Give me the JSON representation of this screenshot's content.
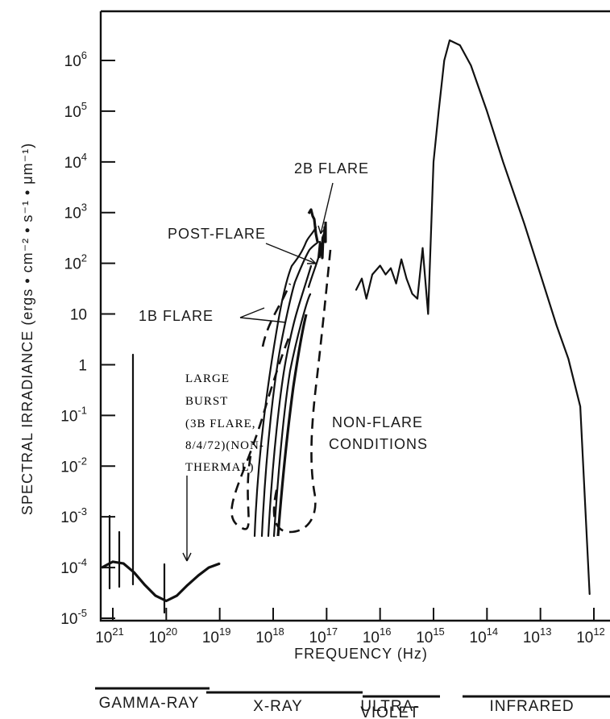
{
  "chart_data": {
    "type": "line",
    "title": "",
    "xlabel": "FREQUENCY (Hz)",
    "ylabel": "SPECTRAL IRRADIANCE (ergs • cm⁻² • s⁻¹ • μm⁻¹)",
    "x_scale": "log",
    "x_direction": "decreasing",
    "y_scale": "log",
    "x_ticks": [
      {
        "base": "10",
        "exp": "21"
      },
      {
        "base": "10",
        "exp": "20"
      },
      {
        "base": "10",
        "exp": "19"
      },
      {
        "base": "10",
        "exp": "18"
      },
      {
        "base": "10",
        "exp": "17"
      },
      {
        "base": "10",
        "exp": "16"
      },
      {
        "base": "10",
        "exp": "15"
      },
      {
        "base": "10",
        "exp": "14"
      },
      {
        "base": "10",
        "exp": "13"
      },
      {
        "base": "10",
        "exp": "12"
      }
    ],
    "y_ticks": [
      {
        "base": "10",
        "exp": "6"
      },
      {
        "base": "10",
        "exp": "5"
      },
      {
        "base": "10",
        "exp": "4"
      },
      {
        "base": "10",
        "exp": "3"
      },
      {
        "base": "10",
        "exp": "2"
      },
      {
        "base": "10",
        "exp": ""
      },
      {
        "base": "1",
        "exp": ""
      },
      {
        "base": "10",
        "exp": "-1"
      },
      {
        "base": "10",
        "exp": "-2"
      },
      {
        "base": "10",
        "exp": "-3"
      },
      {
        "base": "10",
        "exp": "-4"
      },
      {
        "base": "10",
        "exp": "-5"
      }
    ],
    "xlim": [
      2e+21,
      1200000000000.0
    ],
    "ylim": [
      1e-05,
      10000000.0
    ],
    "series": [
      {
        "x": [
          1.6e+21,
          1e+21,
          6.3e+20,
          4e+20,
          2.5e+20,
          1.6e+20,
          1e+20,
          6.3e+19,
          4e+19,
          2.5e+19,
          1.6e+19,
          1e+19
        ],
        "y": [
          0.0001,
          0.00013,
          0.00012,
          8e-05,
          4.5e-05,
          2.8e-05,
          2.2e-05,
          2.8e-05,
          4.5e-05,
          7e-05,
          0.0001,
          0.00012
        ]
      },
      {
        "x": [
          2.8e+16,
          2.2e+16,
          1.8e+16,
          1.4e+16,
          1e+16,
          7900000000000000.0,
          6300000000000000.0,
          5000000000000000.0,
          4000000000000000.0,
          3200000000000000.0,
          2500000000000000.0,
          2000000000000000.0,
          1600000000000000.0,
          1260000000000000.0,
          1000000000000000.0,
          800000000000000.0,
          630000000000000.0,
          500000000000000.0,
          320000000000000.0,
          200000000000000.0,
          100000000000000.0,
          50000000000000.0,
          20000000000000.0,
          10000000000000.0,
          5000000000000.0,
          3000000000000.0,
          1800000000000.0,
          1200000000000.0
        ],
        "y": [
          30,
          50,
          20,
          60,
          90,
          60,
          80,
          40,
          120,
          50,
          25,
          20,
          200,
          10,
          10000.0,
          100000.0,
          1000000.0,
          2500000.0,
          2000000.0,
          800000.0,
          100000.0,
          10000.0,
          600,
          60,
          6,
          1.3,
          0.15,
          3e-05
        ]
      }
    ],
    "annotations": [
      {
        "text": "2B FLARE"
      },
      {
        "text": "POST-FLARE"
      },
      {
        "text": "1B FLARE"
      },
      {
        "text": "LARGE"
      },
      {
        "text": "BURST"
      },
      {
        "text": "(3B FLARE,"
      },
      {
        "text": "8/4/72)(NON-"
      },
      {
        "text": "THERMAL)"
      },
      {
        "text": "NON-FLARE"
      },
      {
        "text": "CONDITIONS"
      }
    ],
    "bands": [
      {
        "label": "GAMMA-RAY"
      },
      {
        "label": "X-RAY"
      },
      {
        "label": "ULTRA-",
        "label2": "VIOLET"
      },
      {
        "label": "INFRARED"
      }
    ],
    "grid": false,
    "legend": false
  }
}
